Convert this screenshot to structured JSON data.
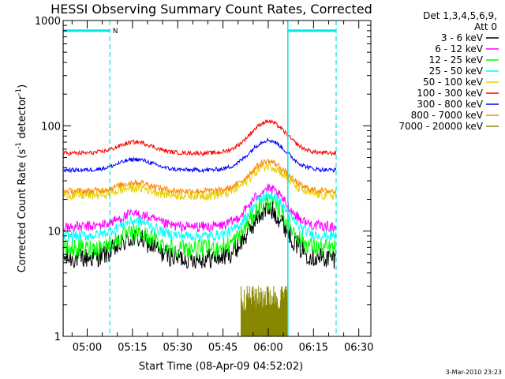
{
  "chart_data": {
    "type": "line",
    "title": "HESSI Observing Summary Count Rates, Corrected",
    "xlabel": "Start Time (08-Apr-09 04:52:02)",
    "ylabel_main": "Corrected Count Rate (s",
    "ylabel_sup1": "-1",
    "ylabel_mid": " detector",
    "ylabel_sup2": "-1",
    "ylabel_end": ")",
    "y_scale": "log",
    "ylim": [
      1,
      1000
    ],
    "y_ticks": [
      {
        "value": 1,
        "label": "1"
      },
      {
        "value": 10,
        "label": "10"
      },
      {
        "value": 100,
        "label": "100"
      },
      {
        "value": 1000,
        "label": "1000"
      }
    ],
    "x_range_min": [
      52.03,
      130.0
    ],
    "x_ticks": [
      {
        "value": 60,
        "label": "05:00"
      },
      {
        "value": 75,
        "label": "05:15"
      },
      {
        "value": 90,
        "label": "05:30"
      },
      {
        "value": 105,
        "label": "05:45"
      },
      {
        "value": 120,
        "label": "06:00"
      },
      {
        "value": 135,
        "label": "06:15"
      },
      {
        "value": 150,
        "label": "06:30"
      }
    ],
    "x_min": 52.03,
    "x_max": 154.0,
    "legend_header": [
      "Det 1,3,4,5,6,9,",
      "Att 0"
    ],
    "legend_position": "right",
    "series": [
      {
        "name": "3 - 6 keV",
        "color": "#000000",
        "base": 5.5,
        "bump1": 8.5,
        "peak": 16,
        "noise": 0.1
      },
      {
        "name": "6 - 12 keV",
        "color": "#ff00ff",
        "base": 11,
        "bump1": 14.5,
        "peak": 25,
        "noise": 0.05
      },
      {
        "name": "12 - 25 keV",
        "color": "#00ff00",
        "base": 6.8,
        "bump1": 9.5,
        "peak": 19,
        "noise": 0.09
      },
      {
        "name": "25 - 50 keV",
        "color": "#00ffff",
        "base": 9,
        "bump1": 12.5,
        "peak": 22,
        "noise": 0.05
      },
      {
        "name": "50 - 100 keV",
        "color": "#e8d000",
        "base": 22,
        "bump1": 26,
        "peak": 42,
        "noise": 0.05
      },
      {
        "name": "100 - 300 keV",
        "color": "#ff0000",
        "base": 55,
        "bump1": 70,
        "peak": 110,
        "noise": 0.02
      },
      {
        "name": "300 - 800 keV",
        "color": "#0000ff",
        "base": 38,
        "bump1": 48,
        "peak": 73,
        "noise": 0.02
      },
      {
        "name": "800 - 7000 keV",
        "color": "#ff8800",
        "base": 24,
        "bump1": 29,
        "peak": 46,
        "noise": 0.03
      },
      {
        "name": "7000 - 20000 keV",
        "color": "#888800",
        "base": null,
        "bump1": null,
        "peak": 2.5,
        "noise": 0.15
      }
    ],
    "day_markers": {
      "color": "#00e5e5",
      "solid_x": [
        52.03,
        126.5
      ],
      "dashed_x": [
        67.5,
        142.5
      ],
      "night_bar_level": 800,
      "night_bars": [
        [
          52.03,
          67.5
        ],
        [
          126.5,
          142.5
        ]
      ],
      "night_label": "N"
    }
  },
  "footer_date": "3-Mar-2010 23:23"
}
